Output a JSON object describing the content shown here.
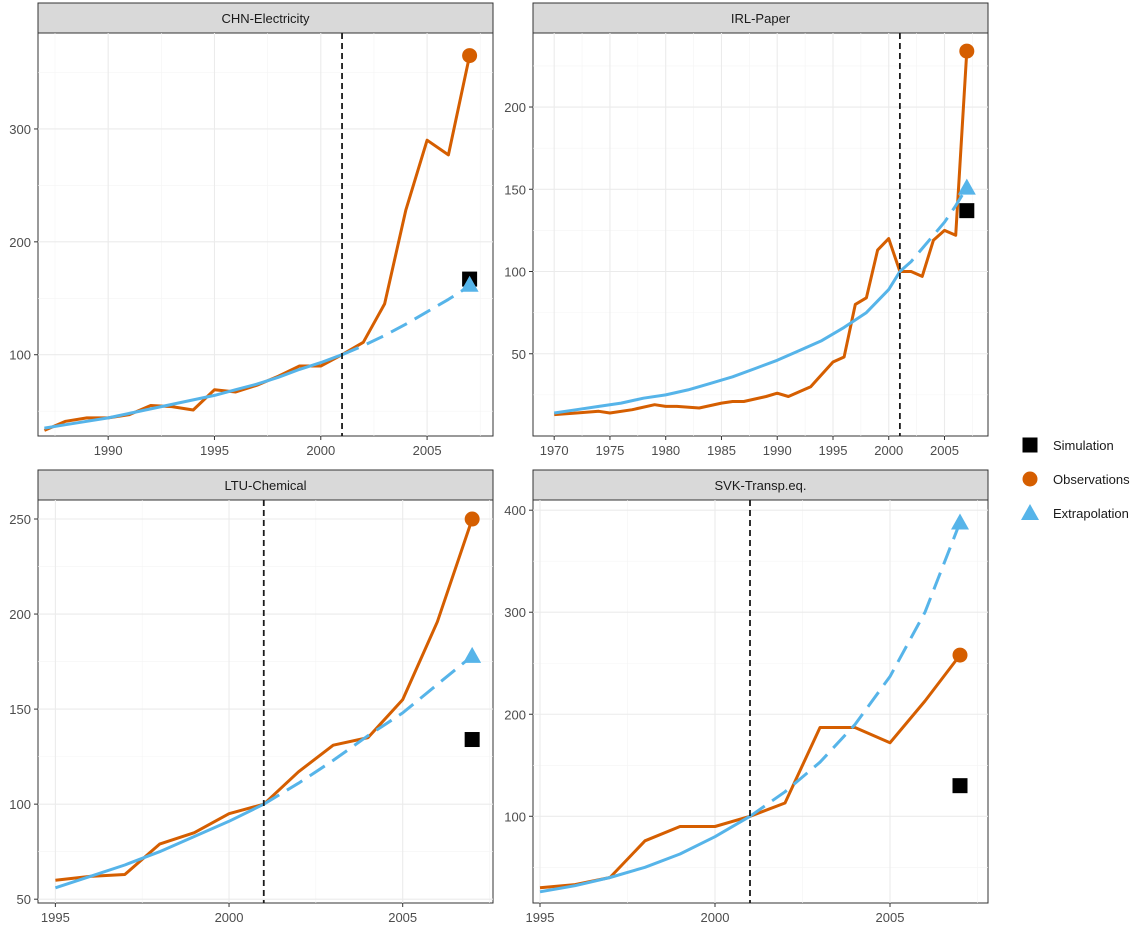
{
  "colors": {
    "simulation": "#000000",
    "observations": "#d55e00",
    "extrapolation": "#56b4e9"
  },
  "legend": {
    "items": [
      {
        "label": "Simulation",
        "shape": "square",
        "color_key": "simulation"
      },
      {
        "label": "Observations",
        "shape": "circle",
        "color_key": "observations"
      },
      {
        "label": "Extrapolation",
        "shape": "triangle",
        "color_key": "extrapolation"
      }
    ]
  },
  "chart_data": [
    {
      "type": "line",
      "title": "CHN-Electricity",
      "xlim": [
        1986.7,
        2008.1
      ],
      "ylim": [
        28,
        385
      ],
      "xticks": [
        1990,
        1995,
        2000,
        2005
      ],
      "yticks": [
        100,
        200,
        300
      ],
      "vline": 2001,
      "series": [
        {
          "name": "Observations",
          "x": [
            1987,
            1988,
            1989,
            1990,
            1991,
            1992,
            1993,
            1994,
            1995,
            1996,
            1997,
            1998,
            1999,
            2000,
            2001,
            2002,
            2003,
            2004,
            2005,
            2006,
            2007
          ],
          "y": [
            33,
            41,
            44,
            44,
            47,
            55,
            54,
            51,
            69,
            67,
            73,
            81,
            90,
            90,
            100,
            111,
            145,
            228,
            290,
            277,
            365
          ]
        },
        {
          "name": "Extrapolation",
          "x": [
            1987,
            1988,
            1989,
            1990,
            1991,
            1992,
            1993,
            1994,
            1995,
            1996,
            1997,
            1998,
            1999,
            2000,
            2001
          ],
          "y": [
            35,
            38,
            41,
            44,
            48,
            52,
            56,
            60,
            64,
            69,
            74,
            80,
            87,
            93,
            100
          ]
        },
        {
          "name": "Extrapolation (projected)",
          "x": [
            2001,
            2002,
            2003,
            2004,
            2005,
            2006,
            2007
          ],
          "y": [
            100,
            108,
            117,
            127,
            138,
            149,
            161
          ]
        }
      ],
      "markers": {
        "Observations": 365,
        "Extrapolation": 162,
        "Simulation": 167
      },
      "marker_x": 2007
    },
    {
      "type": "line",
      "title": "IRL-Paper",
      "xlim": [
        1968.1,
        2008.9
      ],
      "ylim": [
        0,
        245
      ],
      "xticks": [
        1970,
        1975,
        1980,
        1985,
        1990,
        1995,
        2000,
        2005
      ],
      "yticks": [
        50,
        100,
        150,
        200
      ],
      "vline": 2001,
      "series": [
        {
          "name": "Observations",
          "x": [
            1970,
            1972,
            1974,
            1975,
            1977,
            1979,
            1980,
            1981,
            1983,
            1985,
            1986,
            1987,
            1989,
            1990,
            1991,
            1993,
            1995,
            1996,
            1997,
            1998,
            1999,
            2000,
            2001,
            2002,
            2003,
            2004,
            2005,
            2006,
            2007
          ],
          "y": [
            13,
            14,
            15,
            14,
            16,
            19,
            18,
            18,
            17,
            20,
            21,
            21,
            24,
            26,
            24,
            30,
            45,
            48,
            80,
            84,
            113,
            120,
            100,
            100,
            97,
            119,
            125,
            122,
            234
          ]
        },
        {
          "name": "Extrapolation",
          "x": [
            1970,
            1972,
            1974,
            1976,
            1978,
            1980,
            1982,
            1984,
            1986,
            1988,
            1990,
            1992,
            1994,
            1996,
            1998,
            2000,
            2001
          ],
          "y": [
            14,
            16,
            18,
            20,
            23,
            25,
            28,
            32,
            36,
            41,
            46,
            52,
            58,
            66,
            75,
            89,
            100
          ]
        },
        {
          "name": "Extrapolation (projected)",
          "x": [
            2001,
            2002,
            2003,
            2004,
            2005,
            2006,
            2007
          ],
          "y": [
            100,
            106,
            114,
            122,
            130,
            140,
            151
          ]
        }
      ],
      "markers": {
        "Observations": 234,
        "Extrapolation": 151,
        "Simulation": 137
      },
      "marker_x": 2007
    },
    {
      "type": "line",
      "title": "LTU-Chemical",
      "xlim": [
        1994.5,
        2007.6
      ],
      "ylim": [
        48,
        260
      ],
      "xticks": [
        1995,
        2000,
        2005
      ],
      "yticks": [
        50,
        100,
        150,
        200,
        250
      ],
      "vline": 2001,
      "series": [
        {
          "name": "Observations",
          "x": [
            1995,
            1996,
            1997,
            1998,
            1999,
            2000,
            2001,
            2002,
            2003,
            2004,
            2005,
            2006,
            2007
          ],
          "y": [
            60,
            62,
            63,
            79,
            85,
            95,
            100,
            117,
            131,
            135,
            155,
            196,
            250
          ]
        },
        {
          "name": "Extrapolation",
          "x": [
            1995,
            1996,
            1997,
            1998,
            1999,
            2000,
            2001
          ],
          "y": [
            56,
            62,
            68,
            75,
            83,
            91,
            100
          ]
        },
        {
          "name": "Extrapolation (projected)",
          "x": [
            2001,
            2002,
            2003,
            2004,
            2005,
            2006,
            2007
          ],
          "y": [
            100,
            111,
            123,
            136,
            148,
            163,
            178
          ]
        }
      ],
      "markers": {
        "Observations": 250,
        "Extrapolation": 178,
        "Simulation": 134
      },
      "marker_x": 2007
    },
    {
      "type": "line",
      "title": "SVK-Transp.eq.",
      "xlim": [
        1994.8,
        2007.8
      ],
      "ylim": [
        15,
        410
      ],
      "xticks": [
        1995,
        2000,
        2005
      ],
      "yticks": [
        100,
        200,
        300,
        400
      ],
      "vline": 2001,
      "series": [
        {
          "name": "Observations",
          "x": [
            1995,
            1996,
            1997,
            1998,
            1999,
            2000,
            2001,
            2002,
            2003,
            2004,
            2005,
            2006,
            2007
          ],
          "y": [
            30,
            33,
            40,
            76,
            90,
            90,
            100,
            113,
            187,
            187,
            172,
            213,
            258
          ]
        },
        {
          "name": "Extrapolation",
          "x": [
            1995,
            1996,
            1997,
            1998,
            1999,
            2000,
            2001
          ],
          "y": [
            26,
            32,
            40,
            50,
            63,
            80,
            100
          ]
        },
        {
          "name": "Extrapolation (projected)",
          "x": [
            2001,
            2002,
            2003,
            2004,
            2005,
            2006,
            2007
          ],
          "y": [
            100,
            124,
            153,
            190,
            237,
            300,
            388
          ]
        }
      ],
      "markers": {
        "Observations": 258,
        "Extrapolation": 388,
        "Simulation": 130
      },
      "marker_x": 2007
    }
  ]
}
